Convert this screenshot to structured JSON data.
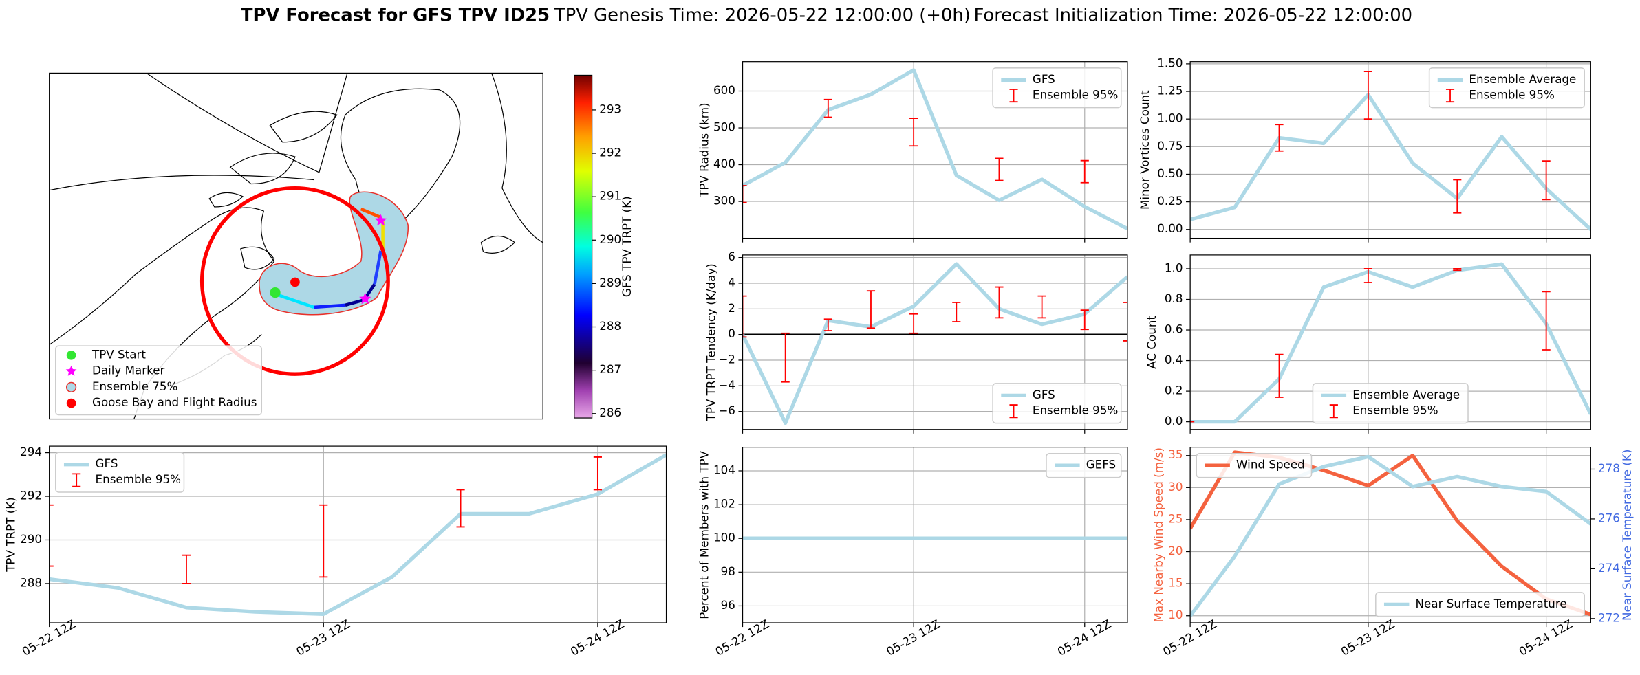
{
  "title": "TPV Forecast for GFS TPV ID25",
  "genesis": "TPV Genesis Time: 2026-05-22 12:00:00 (+0h)",
  "init": "Forecast Initialization Time: 2026-05-22 12:00:00",
  "chart_data": [
    {
      "type": "map",
      "legend": [
        {
          "label": "TPV Start",
          "color": "#32e632",
          "marker": "circle"
        },
        {
          "label": "Daily Marker",
          "color": "#ff00ff",
          "marker": "star"
        },
        {
          "label": "Ensemble 75%",
          "color": "#add8e6",
          "edgecolor": "#e8302a",
          "marker": "circle"
        },
        {
          "label": "Goose Bay and Flight Radius",
          "color": "#ff0000",
          "marker": "circle"
        }
      ],
      "legend_loc": "lower left",
      "colorbar": {
        "label": "GFS TPV TRPT (K)",
        "lim": [
          285.9,
          293.8
        ],
        "ticks": [
          286,
          287,
          288,
          289,
          290,
          291,
          292,
          293
        ]
      }
    },
    {
      "type": "line",
      "ylabel": "TPV Radius (km)",
      "series": [
        {
          "name": "GFS",
          "color": "#add8e6",
          "values": [
            343,
            406,
            549,
            591,
            657,
            371,
            303,
            360,
            286,
            226
          ]
        },
        {
          "name": "Ensemble 95%",
          "color": "#ff0000",
          "type": "errorbar",
          "low": [
            297,
            null,
            529,
            null,
            451,
            null,
            357,
            null,
            351,
            null
          ],
          "high": [
            343,
            null,
            577,
            null,
            526,
            null,
            417,
            null,
            411,
            null
          ]
        }
      ],
      "ylim": [
        200,
        680
      ],
      "yticks": [
        300,
        400,
        500,
        600
      ],
      "grid": true,
      "legend": "upper right"
    },
    {
      "type": "line",
      "ylabel": "Minor Vortices Count",
      "series": [
        {
          "name": "Ensemble Average",
          "color": "#add8e6",
          "values": [
            0.09,
            0.2,
            0.83,
            0.78,
            1.22,
            0.6,
            0.28,
            0.84,
            0.37,
            0
          ]
        },
        {
          "name": "Ensemble 95%",
          "color": "#ff0000",
          "type": "errorbar",
          "low": [
            null,
            null,
            0.71,
            null,
            1.0,
            null,
            0.15,
            null,
            0.27,
            null
          ],
          "high": [
            null,
            null,
            0.95,
            null,
            1.43,
            null,
            0.45,
            null,
            0.62,
            null
          ]
        }
      ],
      "ylim": [
        -0.08,
        1.52
      ],
      "yticks": [
        {
          "value": 0,
          "label": "0.00"
        },
        {
          "value": 0.25,
          "label": "0.25"
        },
        {
          "value": 0.5,
          "label": "0.50"
        },
        {
          "value": 0.75,
          "label": "0.75"
        },
        {
          "value": 1,
          "label": "1.00"
        },
        {
          "value": 1.25,
          "label": "1.25"
        },
        {
          "value": 1.5,
          "label": "1.50"
        }
      ],
      "grid": true,
      "legend": "upper right"
    },
    {
      "type": "line",
      "ylabel": "TPV TRPT Tendency (K/day)",
      "series": [
        {
          "name": "GFS",
          "color": "#add8e6",
          "values": [
            0,
            -6.9,
            1.1,
            0.6,
            2.2,
            5.5,
            2.0,
            0.8,
            1.6,
            4.5
          ]
        },
        {
          "name": "Ensemble 95%",
          "color": "#ff0000",
          "type": "errorbar",
          "low": [
            -0.2,
            -3.7,
            0.3,
            0.5,
            0.1,
            1.0,
            1.3,
            1.3,
            0.4,
            -0.5
          ],
          "high": [
            3.0,
            0.1,
            1.2,
            3.4,
            1.6,
            2.5,
            3.7,
            3.0,
            1.9,
            2.5
          ]
        }
      ],
      "ylim": [
        -7.4,
        6.2
      ],
      "yticks": [
        {
          "value": -6,
          "label": "−6"
        },
        {
          "value": -4,
          "label": "−4"
        },
        {
          "value": -2,
          "label": "−2"
        },
        0,
        2,
        4,
        6
      ],
      "hline": 0,
      "grid": true,
      "legend": "lower right"
    },
    {
      "type": "line",
      "ylabel": "AC Count",
      "series": [
        {
          "name": "Ensemble Average",
          "color": "#add8e6",
          "values": [
            0,
            0,
            0.28,
            0.88,
            0.98,
            0.88,
            0.99,
            1.03,
            0.64,
            0.05
          ]
        },
        {
          "name": "Ensemble 95%",
          "color": "#ff0000",
          "type": "errorbar",
          "low": [
            0,
            null,
            0.16,
            null,
            0.91,
            null,
            0.99,
            null,
            0.47,
            null
          ],
          "high": [
            0,
            null,
            0.44,
            null,
            1.0,
            null,
            1.0,
            null,
            0.85,
            null
          ]
        }
      ],
      "ylim": [
        -0.05,
        1.09
      ],
      "yticks": [
        {
          "value": 0,
          "label": "0.0"
        },
        {
          "value": 0.2,
          "label": "0.2"
        },
        {
          "value": 0.4,
          "label": "0.4"
        },
        {
          "value": 0.6,
          "label": "0.6"
        },
        {
          "value": 0.8,
          "label": "0.8"
        },
        {
          "value": 1,
          "label": "1.0"
        }
      ],
      "grid": true,
      "legend": "lower center"
    },
    {
      "type": "line",
      "ylabel": "TPV TRPT (K)",
      "categories": [
        "05-22 12Z",
        null,
        null,
        null,
        "05-23 12Z",
        null,
        null,
        null,
        "05-24 12Z",
        null
      ],
      "series": [
        {
          "name": "GFS",
          "color": "#add8e6",
          "values": [
            288.2,
            287.8,
            286.9,
            286.7,
            286.6,
            288.3,
            291.2,
            291.2,
            292.1,
            293.9
          ]
        },
        {
          "name": "Ensemble 95%",
          "color": "#ff0000",
          "type": "errorbar",
          "low": [
            288.8,
            null,
            288.0,
            null,
            288.3,
            null,
            290.6,
            null,
            292.3,
            null
          ],
          "high": [
            291.6,
            null,
            289.3,
            null,
            291.6,
            null,
            292.3,
            null,
            293.8,
            null
          ]
        }
      ],
      "ylim": [
        286.2,
        294.3
      ],
      "yticks": [
        288,
        290,
        292,
        294
      ],
      "grid": true,
      "legend": "upper left"
    },
    {
      "type": "line",
      "ylabel": "Percent of Members with TPV",
      "categories": [
        "05-22 12Z",
        null,
        null,
        null,
        "05-23 12Z",
        null,
        null,
        null,
        "05-24 12Z",
        null
      ],
      "series": [
        {
          "name": "GEFS",
          "color": "#add8e6",
          "values": [
            100,
            100,
            100,
            100,
            100,
            100,
            100,
            100,
            100,
            100
          ]
        }
      ],
      "ylim": [
        95,
        105.4
      ],
      "yticks": [
        96,
        98,
        100,
        102,
        104
      ],
      "grid": true,
      "legend": "upper right"
    },
    {
      "type": "line",
      "ylabel": "Max Nearby Wind Speed (m/s)",
      "y2label": "Near Surface Temperature (K)",
      "ylabel_color": "#f4623f",
      "y2label_color": "#4169e1",
      "categories": [
        "05-22 12Z",
        null,
        null,
        null,
        "05-23 12Z",
        null,
        null,
        null,
        "05-24 12Z",
        null
      ],
      "series": [
        {
          "name": "Wind Speed",
          "color": "#f4623f",
          "values": [
            23.6,
            35.5,
            34.7,
            32.7,
            30.3,
            35,
            24.8,
            17.7,
            12.6,
            10.2
          ]
        },
        {
          "name": "Near Surface Temperature",
          "color": "#add8e6",
          "axis": "y2",
          "values": [
            272.1,
            274.5,
            277.4,
            278.1,
            278.5,
            277.3,
            277.7,
            277.3,
            277.1,
            275.8
          ]
        }
      ],
      "ylim": [
        8.9,
        36.3
      ],
      "yticks": [
        10,
        15,
        20,
        25,
        30,
        35
      ],
      "y2lim": [
        271.83,
        278.88
      ],
      "y2ticks": [
        272,
        274,
        276,
        278
      ],
      "grid": true,
      "legend": "upper left",
      "legend2": "lower right"
    }
  ]
}
